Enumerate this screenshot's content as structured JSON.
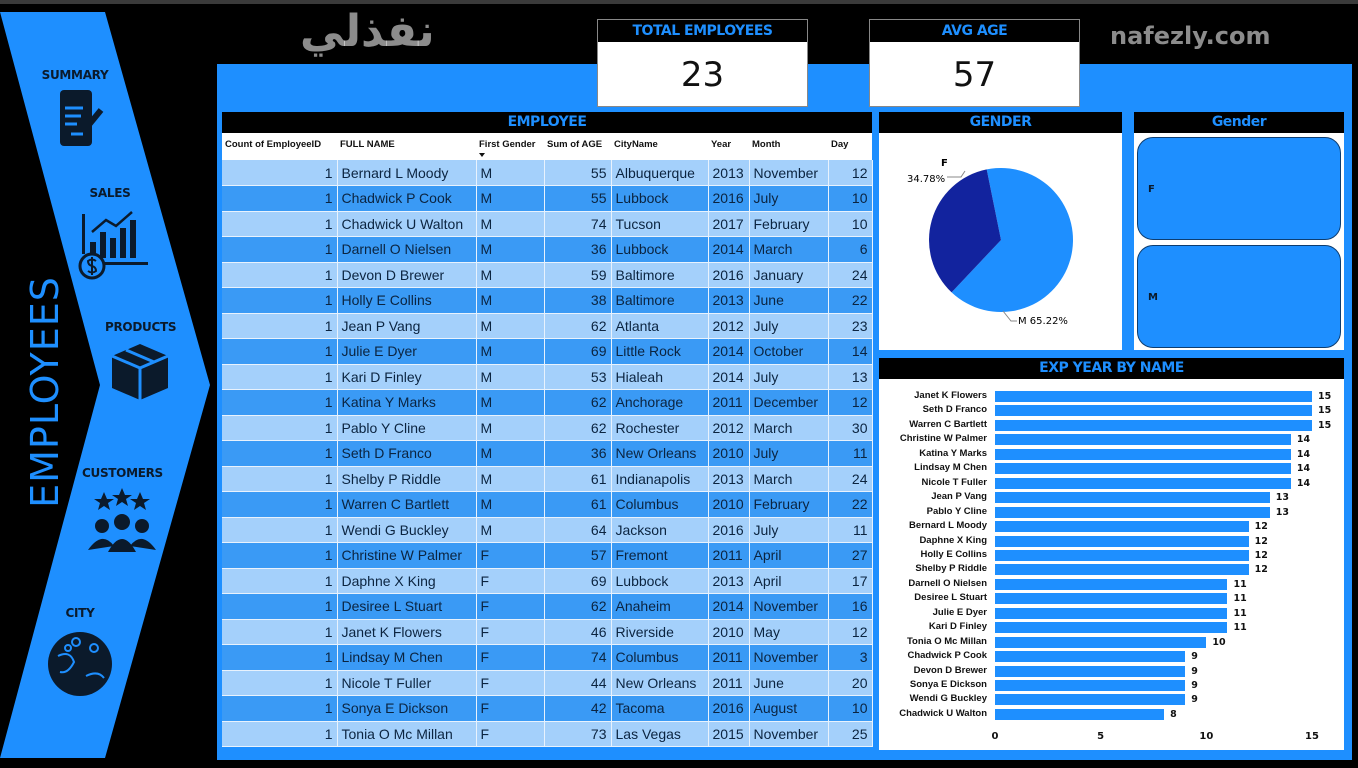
{
  "nav": {
    "title": "EMPLOYEES",
    "items": [
      {
        "label": "SUMMARY",
        "icon": "document-edit-icon"
      },
      {
        "label": "SALES",
        "icon": "sales-chart-icon"
      },
      {
        "label": "PRODUCTS",
        "icon": "box-icon"
      },
      {
        "label": "CUSTOMERS",
        "icon": "customers-icon"
      },
      {
        "label": "CITY",
        "icon": "globe-pin-icon"
      }
    ]
  },
  "kpis": {
    "total_label": "TOTAL EMPLOYEES",
    "total_value": "23",
    "age_label": "AVG AGE",
    "age_value": "57"
  },
  "table": {
    "title": "EMPLOYEE",
    "columns": [
      "Count of EmployeeID",
      "FULL NAME",
      "First Gender",
      "Sum of AGE",
      "CityName",
      "Year",
      "Month",
      "Day"
    ],
    "rows": [
      [
        "1",
        "Bernard L Moody",
        "M",
        "55",
        "Albuquerque",
        "2013",
        "November",
        "12"
      ],
      [
        "1",
        "Chadwick P Cook",
        "M",
        "55",
        "Lubbock",
        "2016",
        "July",
        "10"
      ],
      [
        "1",
        "Chadwick U Walton",
        "M",
        "74",
        "Tucson",
        "2017",
        "February",
        "10"
      ],
      [
        "1",
        "Darnell O Nielsen",
        "M",
        "36",
        "Lubbock",
        "2014",
        "March",
        "6"
      ],
      [
        "1",
        "Devon D Brewer",
        "M",
        "59",
        "Baltimore",
        "2016",
        "January",
        "24"
      ],
      [
        "1",
        "Holly E Collins",
        "M",
        "38",
        "Baltimore",
        "2013",
        "June",
        "22"
      ],
      [
        "1",
        "Jean P Vang",
        "M",
        "62",
        "Atlanta",
        "2012",
        "July",
        "23"
      ],
      [
        "1",
        "Julie E Dyer",
        "M",
        "69",
        "Little Rock",
        "2014",
        "October",
        "14"
      ],
      [
        "1",
        "Kari D Finley",
        "M",
        "53",
        "Hialeah",
        "2014",
        "July",
        "13"
      ],
      [
        "1",
        "Katina Y Marks",
        "M",
        "62",
        "Anchorage",
        "2011",
        "December",
        "12"
      ],
      [
        "1",
        "Pablo Y Cline",
        "M",
        "62",
        "Rochester",
        "2012",
        "March",
        "30"
      ],
      [
        "1",
        "Seth D Franco",
        "M",
        "36",
        "New Orleans",
        "2010",
        "July",
        "11"
      ],
      [
        "1",
        "Shelby P Riddle",
        "M",
        "61",
        "Indianapolis",
        "2013",
        "March",
        "24"
      ],
      [
        "1",
        "Warren C Bartlett",
        "M",
        "61",
        "Columbus",
        "2010",
        "February",
        "22"
      ],
      [
        "1",
        "Wendi G Buckley",
        "M",
        "64",
        "Jackson",
        "2016",
        "July",
        "11"
      ],
      [
        "1",
        "Christine W Palmer",
        "F",
        "57",
        "Fremont",
        "2011",
        "April",
        "27"
      ],
      [
        "1",
        "Daphne X King",
        "F",
        "69",
        "Lubbock",
        "2013",
        "April",
        "17"
      ],
      [
        "1",
        "Desiree L Stuart",
        "F",
        "62",
        "Anaheim",
        "2014",
        "November",
        "16"
      ],
      [
        "1",
        "Janet K Flowers",
        "F",
        "46",
        "Riverside",
        "2010",
        "May",
        "12"
      ],
      [
        "1",
        "Lindsay M Chen",
        "F",
        "74",
        "Columbus",
        "2011",
        "November",
        "3"
      ],
      [
        "1",
        "Nicole T Fuller",
        "F",
        "44",
        "New Orleans",
        "2011",
        "June",
        "20"
      ],
      [
        "1",
        "Sonya E Dickson",
        "F",
        "42",
        "Tacoma",
        "2016",
        "August",
        "10"
      ],
      [
        "1",
        "Tonia O Mc Millan",
        "F",
        "73",
        "Las Vegas",
        "2015",
        "November",
        "25"
      ]
    ]
  },
  "gender_chart": {
    "title": "GENDER",
    "f_label": "F",
    "f_pct": "34.78%",
    "m_label": "M 65.22%",
    "colors": {
      "F": "#12239e",
      "M": "#1e8fff"
    }
  },
  "gender_slicer": {
    "title": "Gender",
    "options": [
      "F",
      "M"
    ]
  },
  "chart_data": {
    "type": "bar",
    "title": "EXP YEAR BY NAME",
    "orientation": "horizontal",
    "categories": [
      "Janet K Flowers",
      "Seth D Franco",
      "Warren C Bartlett",
      "Christine W Palmer",
      "Katina Y Marks",
      "Lindsay M Chen",
      "Nicole T Fuller",
      "Jean P Vang",
      "Pablo Y Cline",
      "Bernard L Moody",
      "Daphne X King",
      "Holly E Collins",
      "Shelby P Riddle",
      "Darnell O Nielsen",
      "Desiree L Stuart",
      "Julie E Dyer",
      "Kari D Finley",
      "Tonia O Mc Millan",
      "Chadwick P Cook",
      "Devon D Brewer",
      "Sonya E Dickson",
      "Wendi G Buckley",
      "Chadwick U Walton"
    ],
    "values": [
      15,
      15,
      15,
      14,
      14,
      14,
      14,
      13,
      13,
      12,
      12,
      12,
      12,
      11,
      11,
      11,
      11,
      10,
      9,
      9,
      9,
      9,
      8
    ],
    "xlim": [
      0,
      15
    ],
    "xticks": [
      "0",
      "5",
      "10",
      "15"
    ]
  },
  "watermark": {
    "text": "نفذلي",
    "url": "nafezly.com"
  }
}
